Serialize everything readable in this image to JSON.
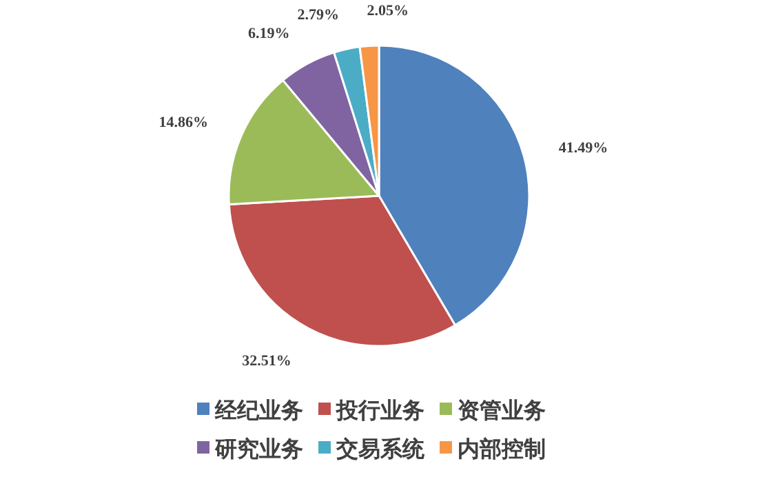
{
  "chart_data": {
    "type": "pie",
    "categories": [
      "经纪业务",
      "投行业务",
      "资管业务",
      "研究业务",
      "交易系统",
      "内部控制"
    ],
    "values": [
      41.49,
      32.51,
      14.86,
      6.19,
      2.79,
      2.05
    ],
    "value_labels": [
      "41.49%",
      "32.51%",
      "14.86%",
      "6.19%",
      "2.79%",
      "2.05%"
    ],
    "colors": [
      "#4f81bd",
      "#c0504d",
      "#9bbb59",
      "#8064a2",
      "#4bacc6",
      "#f79646"
    ],
    "legend": "bottom"
  }
}
